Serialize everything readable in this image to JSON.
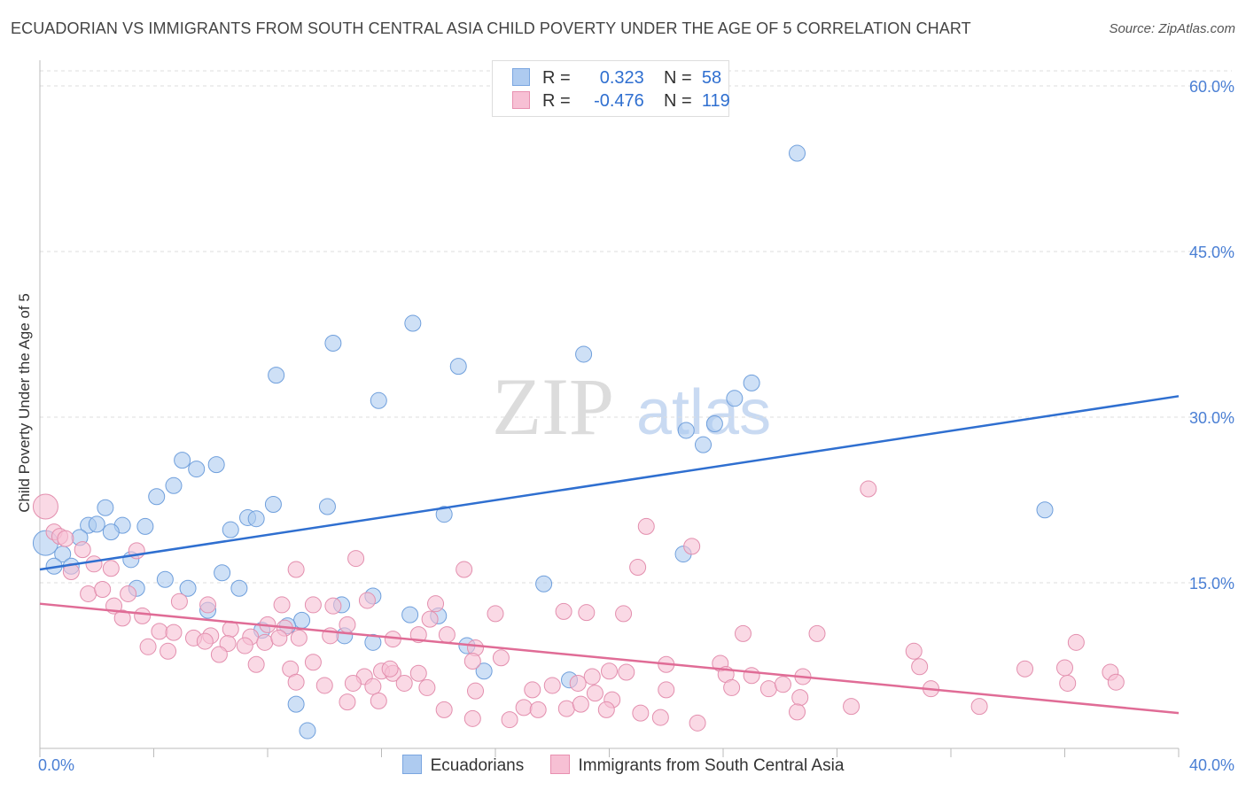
{
  "title": "ECUADORIAN VS IMMIGRANTS FROM SOUTH CENTRAL ASIA CHILD POVERTY UNDER THE AGE OF 5 CORRELATION CHART",
  "source": "Source: ZipAtlas.com",
  "watermark": {
    "zip": "ZIP",
    "atlas": "atlas"
  },
  "legend": {
    "rows": [
      {
        "r_key": "R =",
        "r_value": "0.323",
        "n_key": "N =",
        "n_value": "58",
        "color": "#aecbf0",
        "border": "#7aa6e0"
      },
      {
        "r_key": "R =",
        "r_value": "-0.476",
        "n_key": "N =",
        "n_value": "119",
        "color": "#f7c0d4",
        "border": "#e890b0"
      }
    ]
  },
  "bottom_legend": [
    {
      "label": "Ecuadorians",
      "color": "#aecbf0",
      "border": "#7aa6e0"
    },
    {
      "label": "Immigrants from South Central Asia",
      "color": "#f7c0d4",
      "border": "#e890b0"
    }
  ],
  "colors": {
    "blue_point": "#aecbf0",
    "blue_stroke": "#6f9fdc",
    "blue_line": "#2f6fd0",
    "pink_point": "#f7c0d4",
    "pink_stroke": "#e38fae",
    "pink_line": "#e06c96",
    "grid": "#dddddd",
    "tick_label": "#4a7fd4"
  },
  "chart_data": {
    "type": "scatter",
    "ylabel": "Child Poverty Under the Age of 5",
    "xlim": [
      0,
      40
    ],
    "ylim": [
      0,
      60
    ],
    "x_tick_labels": [
      "0.0%",
      "40.0%"
    ],
    "y_ticks": [
      15,
      30,
      45,
      60
    ],
    "y_tick_labels": [
      "15.0%",
      "30.0%",
      "45.0%",
      "60.0%"
    ],
    "grid": "horizontal dashed",
    "series": [
      {
        "name": "Ecuadorians",
        "trend": [
          [
            0,
            16.2
          ],
          [
            40,
            31.9
          ]
        ],
        "points": [
          [
            26.6,
            53.9
          ],
          [
            13.1,
            38.5
          ],
          [
            10.3,
            36.7
          ],
          [
            19.1,
            35.7
          ],
          [
            8.3,
            33.8
          ],
          [
            14.7,
            34.6
          ],
          [
            11.9,
            31.5
          ],
          [
            24.4,
            31.7
          ],
          [
            25.0,
            33.1
          ],
          [
            23.7,
            29.4
          ],
          [
            22.7,
            28.8
          ],
          [
            23.3,
            27.5
          ],
          [
            5.0,
            26.1
          ],
          [
            6.2,
            25.7
          ],
          [
            5.5,
            25.3
          ],
          [
            4.7,
            23.8
          ],
          [
            4.1,
            22.8
          ],
          [
            2.3,
            21.8
          ],
          [
            10.1,
            21.9
          ],
          [
            8.2,
            22.1
          ],
          [
            7.3,
            20.9
          ],
          [
            7.6,
            20.8
          ],
          [
            14.2,
            21.2
          ],
          [
            35.3,
            21.6
          ],
          [
            6.7,
            19.8
          ],
          [
            1.7,
            20.2
          ],
          [
            2.0,
            20.3
          ],
          [
            2.9,
            20.2
          ],
          [
            3.7,
            20.1
          ],
          [
            2.5,
            19.6
          ],
          [
            0.2,
            18.6
          ],
          [
            1.4,
            19.1
          ],
          [
            0.8,
            17.6
          ],
          [
            0.5,
            16.5
          ],
          [
            1.1,
            16.5
          ],
          [
            3.2,
            17.1
          ],
          [
            22.6,
            17.6
          ],
          [
            6.4,
            15.9
          ],
          [
            4.4,
            15.3
          ],
          [
            7.0,
            14.5
          ],
          [
            5.2,
            14.5
          ],
          [
            3.4,
            14.5
          ],
          [
            17.7,
            14.9
          ],
          [
            11.7,
            13.8
          ],
          [
            10.6,
            13.0
          ],
          [
            5.9,
            12.5
          ],
          [
            13.0,
            12.1
          ],
          [
            14.0,
            12.0
          ],
          [
            9.2,
            11.6
          ],
          [
            8.7,
            11.1
          ],
          [
            7.8,
            10.7
          ],
          [
            10.7,
            10.2
          ],
          [
            11.7,
            9.6
          ],
          [
            15.0,
            9.3
          ],
          [
            15.6,
            7.0
          ],
          [
            18.6,
            6.2
          ],
          [
            9.0,
            4.0
          ],
          [
            9.4,
            1.6
          ]
        ]
      },
      {
        "name": "Immigrants from South Central Asia",
        "trend": [
          [
            0,
            13.1
          ],
          [
            40,
            3.2
          ]
        ],
        "points": [
          [
            0.2,
            21.9
          ],
          [
            29.1,
            23.5
          ],
          [
            0.5,
            19.6
          ],
          [
            0.7,
            19.2
          ],
          [
            0.9,
            19.0
          ],
          [
            1.5,
            18.0
          ],
          [
            3.4,
            17.9
          ],
          [
            21.3,
            20.1
          ],
          [
            22.9,
            18.3
          ],
          [
            1.1,
            16.0
          ],
          [
            1.9,
            16.7
          ],
          [
            2.5,
            16.3
          ],
          [
            9.0,
            16.2
          ],
          [
            11.1,
            17.2
          ],
          [
            14.9,
            16.2
          ],
          [
            21.0,
            16.4
          ],
          [
            1.7,
            14.0
          ],
          [
            2.2,
            14.4
          ],
          [
            3.1,
            14.0
          ],
          [
            2.6,
            12.9
          ],
          [
            3.6,
            12.0
          ],
          [
            4.9,
            13.3
          ],
          [
            5.9,
            13.0
          ],
          [
            8.5,
            13.0
          ],
          [
            9.6,
            13.0
          ],
          [
            10.3,
            12.9
          ],
          [
            11.5,
            13.4
          ],
          [
            13.9,
            13.1
          ],
          [
            16.0,
            12.2
          ],
          [
            18.4,
            12.4
          ],
          [
            19.2,
            12.3
          ],
          [
            20.5,
            12.2
          ],
          [
            2.9,
            11.8
          ],
          [
            4.2,
            10.6
          ],
          [
            4.7,
            10.5
          ],
          [
            5.4,
            10.0
          ],
          [
            6.0,
            10.2
          ],
          [
            6.7,
            10.8
          ],
          [
            7.4,
            10.1
          ],
          [
            8.0,
            11.2
          ],
          [
            8.6,
            10.9
          ],
          [
            9.1,
            10.0
          ],
          [
            10.2,
            10.2
          ],
          [
            10.8,
            11.2
          ],
          [
            12.4,
            9.9
          ],
          [
            13.3,
            10.3
          ],
          [
            13.7,
            11.7
          ],
          [
            14.3,
            10.3
          ],
          [
            3.8,
            9.2
          ],
          [
            4.5,
            8.8
          ],
          [
            5.8,
            9.7
          ],
          [
            6.6,
            9.5
          ],
          [
            7.2,
            9.3
          ],
          [
            7.9,
            9.6
          ],
          [
            8.4,
            10.0
          ],
          [
            15.3,
            9.1
          ],
          [
            24.7,
            10.4
          ],
          [
            27.3,
            10.4
          ],
          [
            30.7,
            8.8
          ],
          [
            36.4,
            9.6
          ],
          [
            6.3,
            8.5
          ],
          [
            7.6,
            7.6
          ],
          [
            8.8,
            7.2
          ],
          [
            9.6,
            7.8
          ],
          [
            11.4,
            6.5
          ],
          [
            12.0,
            7.0
          ],
          [
            12.4,
            6.8
          ],
          [
            13.3,
            6.8
          ],
          [
            15.2,
            7.9
          ],
          [
            16.2,
            8.2
          ],
          [
            19.4,
            6.5
          ],
          [
            20.0,
            7.0
          ],
          [
            20.6,
            6.9
          ],
          [
            22.0,
            7.6
          ],
          [
            23.9,
            7.7
          ],
          [
            24.1,
            6.7
          ],
          [
            25.0,
            6.6
          ],
          [
            26.8,
            6.5
          ],
          [
            30.9,
            7.4
          ],
          [
            34.6,
            7.2
          ],
          [
            36.0,
            7.3
          ],
          [
            37.6,
            6.9
          ],
          [
            9.0,
            6.0
          ],
          [
            10.0,
            5.7
          ],
          [
            11.0,
            5.9
          ],
          [
            11.7,
            5.6
          ],
          [
            12.8,
            5.9
          ],
          [
            13.6,
            5.5
          ],
          [
            15.3,
            5.2
          ],
          [
            17.3,
            5.3
          ],
          [
            18.0,
            5.7
          ],
          [
            18.9,
            5.9
          ],
          [
            19.5,
            5.0
          ],
          [
            20.1,
            4.4
          ],
          [
            22.0,
            5.3
          ],
          [
            24.3,
            5.5
          ],
          [
            25.6,
            5.4
          ],
          [
            26.1,
            5.8
          ],
          [
            26.7,
            4.6
          ],
          [
            31.3,
            5.4
          ],
          [
            36.1,
            5.9
          ],
          [
            37.8,
            6.0
          ],
          [
            10.8,
            4.2
          ],
          [
            11.9,
            4.3
          ],
          [
            14.2,
            3.5
          ],
          [
            15.2,
            2.7
          ],
          [
            16.5,
            2.6
          ],
          [
            17.0,
            3.7
          ],
          [
            17.5,
            3.5
          ],
          [
            18.5,
            3.6
          ],
          [
            19.0,
            4.0
          ],
          [
            19.9,
            3.5
          ],
          [
            21.1,
            3.2
          ],
          [
            21.8,
            2.8
          ],
          [
            23.1,
            2.3
          ],
          [
            26.6,
            3.3
          ],
          [
            33.0,
            3.8
          ],
          [
            12.3,
            7.2
          ],
          [
            28.5,
            3.8
          ]
        ]
      }
    ]
  }
}
